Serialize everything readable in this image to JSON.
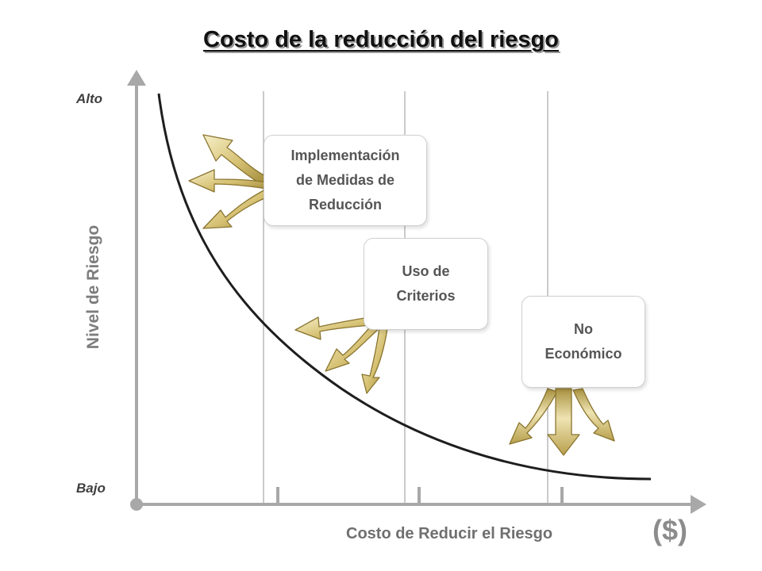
{
  "title": "Costo de la reducción del riesgo",
  "axes": {
    "y_label": "Nivel de Riesgo",
    "y_top": "Alto",
    "y_bottom": "Bajo",
    "x_label": "Costo de Reducir el Riesgo",
    "x_unit": "($)"
  },
  "boxes": [
    {
      "label": "Implementación\nde Medidas de\nReducción"
    },
    {
      "label": "Uso de\nCriterios"
    },
    {
      "label": "No\nEconómico"
    }
  ],
  "colors": {
    "arrow_gold": "#c9b25a",
    "arrow_light": "#f4ecc3",
    "axis": "#a8a8a8",
    "curve": "#1e1e1e"
  },
  "icons": [
    "arrow-up-icon",
    "axis-origin-dot-icon",
    "arrow-right-icon"
  ]
}
